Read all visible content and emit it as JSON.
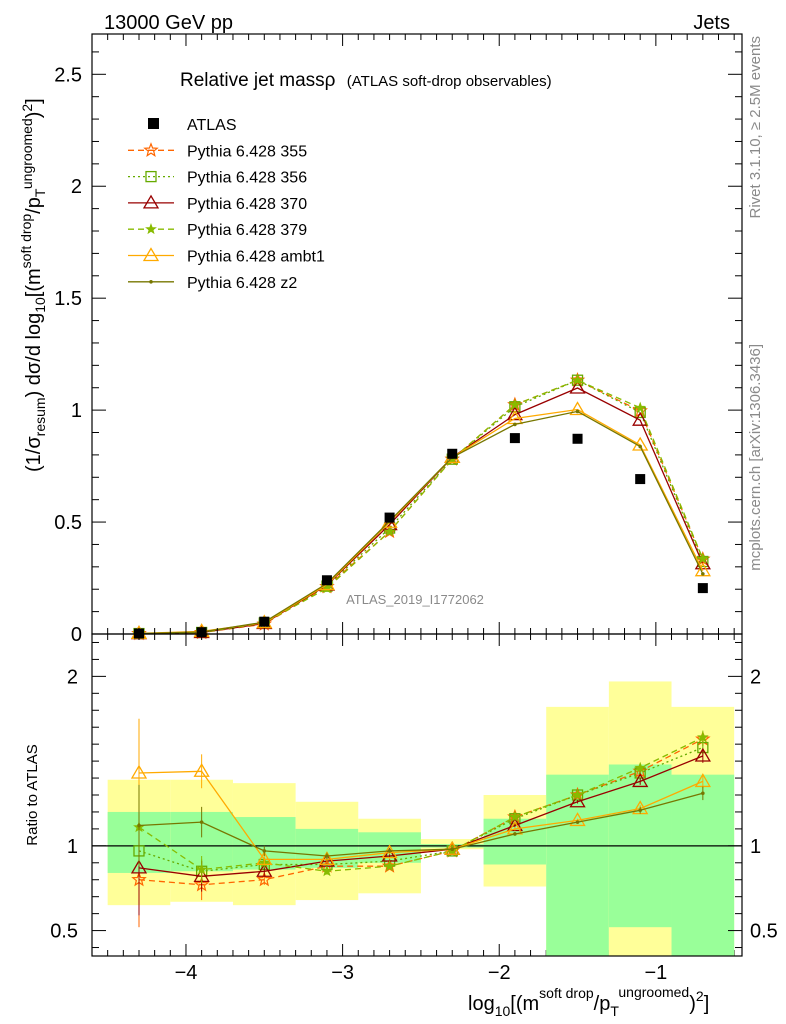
{
  "header": {
    "left_label": "13000 GeV pp",
    "right_label": "Jets"
  },
  "side_labels": {
    "rivet": "Rivet 3.1.10, ≥ 2.5M events",
    "mcplots": "mcplots.cern.ch [arXiv:1306.3436]"
  },
  "watermark": "ATLAS_2019_I1772062",
  "chart_data": {
    "type": "line",
    "title": "Relative jet mass",
    "title_symbol": "ρ",
    "subtitle": "(ATLAS soft-drop observables)",
    "xlabel": "log10[(m^soft drop/pT^ungroomed)^2]",
    "ylabel": "(1/σresum) dσ/d log10[(m^soft drop/pT^ungroomed)^2]",
    "ratio_ylabel": "Ratio to ATLAS",
    "xlim": [
      -4.6,
      -0.45
    ],
    "ylim": [
      0,
      2.68
    ],
    "ratio_ylim": [
      0.35,
      2.25
    ],
    "legend_position": "top-left",
    "x_ticks": [
      -4,
      -3,
      -2,
      -1
    ],
    "x_tick_labels": [
      "−4",
      "−3",
      "−2",
      "−1"
    ],
    "y_ticks": [
      0,
      0.5,
      1,
      1.5,
      2,
      2.5
    ],
    "y_tick_labels": [
      "0",
      "0.5",
      "1",
      "1.5",
      "2",
      "2.5"
    ],
    "ratio_ticks": [
      0.5,
      1,
      2
    ],
    "ratio_tick_labels": [
      "0.5",
      "1",
      "2"
    ],
    "bin_edges": [
      -4.5,
      -4.1,
      -3.7,
      -3.3,
      -2.9,
      -2.5,
      -2.1,
      -1.7,
      -1.3,
      -0.9,
      -0.5
    ],
    "x": [
      -4.3,
      -3.9,
      -3.5,
      -3.1,
      -2.7,
      -2.3,
      -1.9,
      -1.5,
      -1.1,
      -0.7
    ],
    "band_yellow_low": [
      0.65,
      0.67,
      0.65,
      0.68,
      0.72,
      0.98,
      0.76,
      0.3,
      0.3,
      0.3
    ],
    "band_yellow_high": [
      1.39,
      1.39,
      1.37,
      1.26,
      1.16,
      1.04,
      1.3,
      1.82,
      1.97,
      1.82
    ],
    "band_green_low": [
      0.84,
      0.85,
      0.86,
      0.87,
      0.9,
      0.99,
      0.89,
      0.3,
      0.52,
      0.3
    ],
    "band_green_high": [
      1.2,
      1.2,
      1.17,
      1.1,
      1.08,
      1.01,
      1.16,
      1.42,
      1.48,
      1.42
    ],
    "atlas": {
      "name": "ATLAS",
      "values": [
        0.002,
        0.008,
        0.055,
        0.24,
        0.52,
        0.805,
        0.875,
        0.872,
        0.692,
        0.205
      ]
    },
    "series": [
      {
        "name": "Pythia 6.428 355",
        "color": "#ff6600",
        "marker": "star",
        "dash": "6,4",
        "ratio": [
          0.8,
          0.77,
          0.8,
          0.88,
          0.88,
          0.97,
          1.17,
          1.3,
          1.44,
          1.63
        ],
        "ratio_err": [
          0.28,
          0.09,
          0.03,
          0.02,
          0.01,
          0.01,
          0.01,
          0.01,
          0.02,
          0.04
        ]
      },
      {
        "name": "Pythia 6.428 356",
        "color": "#66aa00",
        "marker": "square",
        "dash": "2,3",
        "ratio": [
          0.97,
          0.85,
          0.89,
          0.89,
          0.91,
          0.97,
          1.16,
          1.3,
          1.43,
          1.58
        ],
        "ratio_err": [
          0.15,
          0.07,
          0.03,
          0.02,
          0.01,
          0.01,
          0.01,
          0.01,
          0.02,
          0.04
        ]
      },
      {
        "name": "Pythia 6.428 370",
        "color": "#990000",
        "marker": "triangle",
        "dash": "",
        "ratio": [
          0.87,
          0.82,
          0.85,
          0.91,
          0.94,
          0.98,
          1.12,
          1.26,
          1.38,
          1.53
        ],
        "ratio_err": [
          0.28,
          0.09,
          0.03,
          0.02,
          0.01,
          0.01,
          0.01,
          0.01,
          0.02,
          0.04
        ]
      },
      {
        "name": "Pythia 6.428 379",
        "color": "#88bb00",
        "marker": "starfill",
        "dash": "6,4",
        "ratio": [
          1.11,
          0.86,
          0.9,
          0.85,
          0.88,
          0.97,
          1.17,
          1.3,
          1.46,
          1.64
        ],
        "ratio_err": [
          0.2,
          0.08,
          0.03,
          0.02,
          0.01,
          0.01,
          0.01,
          0.01,
          0.02,
          0.04
        ]
      },
      {
        "name": "Pythia 6.428 ambt1",
        "color": "#ffaa00",
        "marker": "triangle",
        "dash": "",
        "ratio": [
          1.43,
          1.44,
          0.92,
          0.92,
          0.96,
          0.98,
          1.1,
          1.15,
          1.22,
          1.38
        ],
        "ratio_err": [
          0.32,
          0.1,
          0.03,
          0.02,
          0.01,
          0.01,
          0.01,
          0.01,
          0.02,
          0.04
        ]
      },
      {
        "name": "Pythia 6.428 z2",
        "color": "#777700",
        "marker": "dot",
        "dash": "",
        "ratio": [
          1.12,
          1.14,
          0.97,
          0.94,
          0.97,
          0.98,
          1.07,
          1.14,
          1.21,
          1.31
        ],
        "ratio_err": [
          0.24,
          0.09,
          0.03,
          0.02,
          0.01,
          0.01,
          0.01,
          0.01,
          0.02,
          0.04
        ]
      }
    ]
  }
}
